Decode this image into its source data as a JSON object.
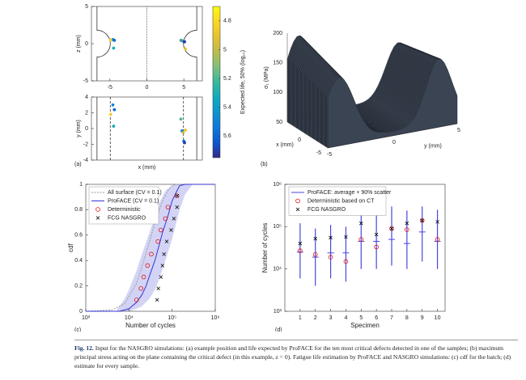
{
  "chart_data": [
    {
      "type": "scatter",
      "ylabel": "z (mm)",
      "xlim": [
        -7.5,
        7.5
      ],
      "xticks": [
        -5,
        0,
        5
      ],
      "ylim": [
        -5,
        5
      ],
      "yticks": [
        -5,
        0,
        5
      ],
      "x": [
        -4.6,
        -4.4,
        -4.9,
        -4.5,
        4.6,
        4.75,
        4.9,
        5.0,
        5.1,
        5.2
      ],
      "values": [
        0.55,
        0.45,
        0.5,
        -0.6,
        0.45,
        0.4,
        0.35,
        0.3,
        0.25,
        -0.7
      ],
      "color_values": [
        5.5,
        5.6,
        4.85,
        5.3,
        5.2,
        5.5,
        5.0,
        5.6,
        5.7,
        4.9
      ],
      "colorbar": {
        "lim": [
          4.7,
          5.75
        ],
        "ticks": [
          4.8,
          5,
          5.2,
          5.4,
          5.6
        ],
        "label": "Expected life, 50% (log₁₀)",
        "colormap": "parula",
        "direction": "reverse"
      }
    },
    {
      "type": "scatter",
      "ylabel": "y (mm)",
      "xlabel": "x (mm)",
      "panel_label": "(a)",
      "xlim": [
        -7.5,
        7.5
      ],
      "ylim": [
        -4,
        4
      ],
      "yticks": [
        -4,
        -2,
        0,
        2,
        4
      ],
      "x": [
        -4.6,
        -4.4,
        -4.9,
        -4.5,
        4.6,
        4.75,
        4.9,
        5.0,
        5.1,
        5.2
      ],
      "values": [
        3.0,
        2.4,
        1.8,
        0.3,
        1.2,
        -0.3,
        -0.5,
        -1.6,
        -1.8,
        -0.2
      ],
      "color_values": [
        5.5,
        5.6,
        4.85,
        5.3,
        5.2,
        5.5,
        5.0,
        5.6,
        5.7,
        4.9
      ]
    },
    {
      "type": "surface",
      "panel_label": "(b)",
      "xlabel": "x (mm)",
      "ylabel": "y (mm)",
      "zlabel": "σ₁ (MPa)",
      "xlim": [
        -5,
        5
      ],
      "ylim": [
        -5,
        5
      ],
      "zlim": [
        50,
        200
      ],
      "xticks": [
        -5,
        0
      ],
      "yticks": [
        -5,
        0,
        5
      ],
      "zticks": [
        50,
        100,
        150,
        200
      ],
      "color": "#3b4452"
    },
    {
      "type": "cdf",
      "panel_label": "(c)",
      "xlabel": "Number of cycles",
      "ylabel": "cdf",
      "xscale": "log",
      "xlim": [
        1000,
        1000000
      ],
      "ylim": [
        0,
        1
      ],
      "xticks": [
        {
          "value": 1000,
          "label": "10³"
        },
        {
          "value": 10000,
          "label": "10⁴"
        },
        {
          "value": 100000,
          "label": "10⁵"
        },
        {
          "value": 1000000,
          "label": "10⁶"
        }
      ],
      "yticks": [
        0,
        0.2,
        0.4,
        0.6,
        0.8,
        1
      ],
      "band": {
        "color": "#d3d4f5",
        "x": [
          5000,
          8000,
          10000,
          15000,
          20000,
          30000,
          40000,
          50000,
          70000,
          100000,
          150000,
          200000,
          300000
        ],
        "upper": [
          0,
          0.1,
          0.17,
          0.32,
          0.45,
          0.62,
          0.75,
          0.85,
          0.95,
          0.99,
          1,
          1,
          1
        ],
        "lower": [
          0,
          0,
          0,
          0.02,
          0.04,
          0.1,
          0.17,
          0.25,
          0.4,
          0.57,
          0.8,
          0.92,
          1
        ]
      },
      "series": [
        {
          "name": "All surface (CV = 0.1)",
          "color": "#9a9a9a",
          "style": "dashed",
          "x": [
            1000,
            4000,
            8000,
            15000,
            20000,
            30000,
            40000,
            60000,
            80000,
            100000,
            130000,
            1000000
          ],
          "values": [
            0,
            0.01,
            0.06,
            0.22,
            0.35,
            0.55,
            0.7,
            0.87,
            0.95,
            0.99,
            1,
            1
          ]
        },
        {
          "name": "ProFACE (CV = 0.1)",
          "color": "#3434d8",
          "style": "solid",
          "x": [
            1000,
            6000,
            10000,
            15000,
            20000,
            25000,
            30000,
            40000,
            50000,
            60000,
            80000,
            100000,
            130000,
            150000,
            200000,
            1000000
          ],
          "values": [
            0,
            0,
            0.02,
            0.07,
            0.13,
            0.2,
            0.28,
            0.4,
            0.52,
            0.62,
            0.75,
            0.87,
            0.95,
            0.99,
            1,
            1
          ]
        },
        {
          "name": "Deterministic",
          "color": "#e01010",
          "marker": "circle",
          "x": [
            15000,
            19000,
            22000,
            27000,
            33000,
            47000,
            55000,
            70000,
            80000,
            130000
          ],
          "values": [
            0.09,
            0.18,
            0.27,
            0.36,
            0.45,
            0.55,
            0.64,
            0.73,
            0.82,
            0.91
          ]
        },
        {
          "name": "FCG NASGRO",
          "color": "#000000",
          "marker": "x",
          "x": [
            45000,
            48000,
            55000,
            60000,
            65000,
            75000,
            95000,
            110000,
            130000,
            130000
          ],
          "values": [
            0.09,
            0.18,
            0.27,
            0.36,
            0.45,
            0.55,
            0.64,
            0.73,
            0.82,
            0.91
          ]
        }
      ]
    },
    {
      "type": "range",
      "panel_label": "(d)",
      "xlabel": "Specimen",
      "ylabel": "Number of cycles",
      "yscale": "log",
      "xlim": [
        0,
        10.5
      ],
      "xticks": [
        1,
        2,
        3,
        4,
        5,
        6,
        7,
        8,
        9,
        10
      ],
      "ylim": [
        1000,
        1000000
      ],
      "yticks": [
        {
          "value": 1000,
          "label": "10³"
        },
        {
          "value": 10000,
          "label": "10⁴"
        },
        {
          "value": 100000,
          "label": "10⁵"
        },
        {
          "value": 1000000,
          "label": "10⁶"
        }
      ],
      "x": [
        1,
        2,
        3,
        4,
        5,
        6,
        7,
        8,
        9,
        10
      ],
      "series": [
        {
          "name": "ProFACE: average + 90% scatter",
          "color": "#4646e0",
          "marker": "range",
          "values": [
            25000,
            19000,
            24000,
            24000,
            45000,
            45000,
            50000,
            40000,
            75000,
            45000
          ],
          "lower": [
            6000,
            4000,
            6000,
            5000,
            10000,
            10000,
            12000,
            10000,
            15000,
            10000
          ],
          "upper": [
            120000,
            90000,
            110000,
            100000,
            220000,
            220000,
            300000,
            240000,
            300000,
            250000
          ]
        },
        {
          "name": "Deterministic based on CT",
          "color": "#e01010",
          "marker": "circle",
          "values": [
            27000,
            22000,
            19000,
            15000,
            50000,
            33000,
            90000,
            85000,
            140000,
            50000
          ]
        },
        {
          "name": "FCG NASGRO",
          "color": "#000000",
          "marker": "x",
          "values": [
            40000,
            52000,
            55000,
            57000,
            120000,
            65000,
            90000,
            120000,
            140000,
            130000
          ]
        }
      ]
    }
  ],
  "caption": {
    "label": "Fig. 12.",
    "text": "Input for the NASGRO simulations: (a) example position and life expected by ProFACE for the ten most critical defects detected in one of the samples; (b) maximum principal stress acting on the plane containing the critical defect (in this example, z = 0). Fatigue life estimation by ProFACE and NASGRO simulations: (c) cdf for the batch; (d) estimate for every sample."
  }
}
